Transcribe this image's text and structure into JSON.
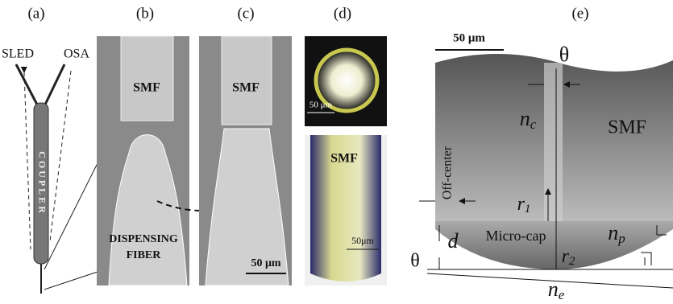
{
  "panel_a": {
    "label": "(a)",
    "source": "SLED",
    "analyzer": "OSA",
    "coupler": "COUPLER"
  },
  "panel_b": {
    "label": "(b)",
    "fiber": "SMF",
    "dispensing_fiber": [
      "DISPENSING",
      "FIBER"
    ]
  },
  "panel_c": {
    "label": "(c)",
    "fiber": "SMF",
    "scale": "50 μm"
  },
  "panel_d": {
    "label": "(d)",
    "top_scale": "50 μm",
    "fiber": "SMF",
    "bottom_scale": "50μm"
  },
  "panel_e": {
    "label": "(e)",
    "scale": "50 μm",
    "theta_top": "θ",
    "n_core": {
      "base": "n",
      "sub": "c"
    },
    "fiber": "SMF",
    "offset": "Off-center",
    "r1": {
      "base": "r",
      "sub": "1"
    },
    "cap": "Micro-cap",
    "n_cap": {
      "base": "n",
      "sub": "p"
    },
    "height": "d",
    "r2": {
      "base": "r",
      "sub": "2"
    },
    "theta_bottom": "θ",
    "n_ext": {
      "base": "n",
      "sub": "e"
    }
  }
}
